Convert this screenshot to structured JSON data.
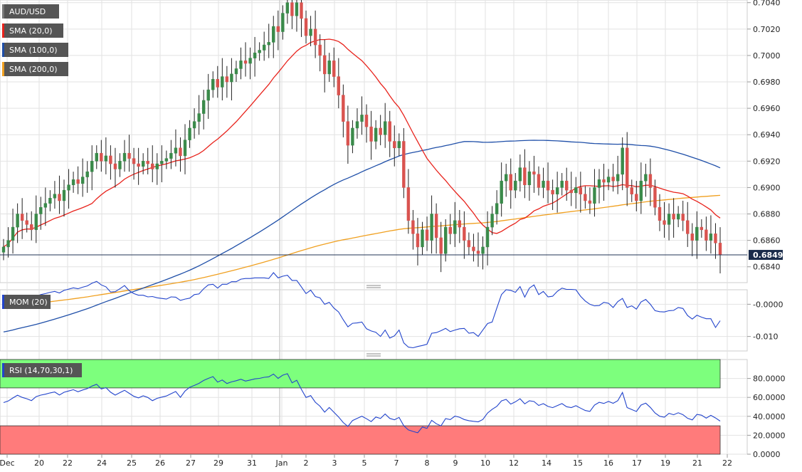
{
  "colors": {
    "up": "#3a8a4a",
    "down": "#d9534f",
    "sma20": "#e8221b",
    "sma100": "#1f4fa8",
    "sma200": "#f0a020",
    "mom": "#2244cc",
    "rsi": "#2244cc",
    "rsi_over": "#7dff7d",
    "rsi_under": "#ff7b7b",
    "badge_bg": "#555555",
    "grid": "#e2e2e2"
  },
  "legend": {
    "symbol": "AUD/USD",
    "sma20": "SMA (20,0)",
    "sma100": "SMA (100,0)",
    "sma200": "SMA (200,0)",
    "mom": "MOM (20)",
    "rsi": "RSI (14,70,30,1)"
  },
  "price_label": "0.6849",
  "x_ticks": [
    "Dec",
    "20",
    "22",
    "24",
    "25",
    "26",
    "27",
    "29",
    "31",
    "Jan",
    "2",
    "3",
    "5",
    "7",
    "8",
    "9",
    "10",
    "12",
    "14",
    "15",
    "16",
    "17",
    "19",
    "21",
    "22"
  ],
  "chart_data": [
    {
      "type": "candlestick",
      "pane": "price",
      "ylim": [
        0.6828,
        0.7042
      ],
      "y_ticks": [
        "0.7040",
        "0.7020",
        "0.7000",
        "0.6980",
        "0.6960",
        "0.6940",
        "0.6920",
        "0.6900",
        "0.6880",
        "0.6860",
        "0.6840"
      ],
      "last_price": 0.6849,
      "closes": [
        0.6855,
        0.686,
        0.687,
        0.688,
        0.6875,
        0.6872,
        0.6868,
        0.688,
        0.6885,
        0.6888,
        0.6892,
        0.6895,
        0.689,
        0.6898,
        0.6902,
        0.6906,
        0.6903,
        0.6908,
        0.6912,
        0.692,
        0.6926,
        0.692,
        0.6924,
        0.6918,
        0.6914,
        0.692,
        0.6926,
        0.6922,
        0.6918,
        0.6916,
        0.692,
        0.6918,
        0.6914,
        0.6918,
        0.692,
        0.6922,
        0.6926,
        0.693,
        0.6924,
        0.6936,
        0.6945,
        0.695,
        0.6956,
        0.6966,
        0.6974,
        0.6982,
        0.6976,
        0.6984,
        0.698,
        0.6986,
        0.699,
        0.6996,
        0.6994,
        0.6998,
        0.7002,
        0.7004,
        0.7008,
        0.701,
        0.7022,
        0.7018,
        0.7032,
        0.704,
        0.703,
        0.704,
        0.7028,
        0.7015,
        0.702,
        0.7008,
        0.7,
        0.6986,
        0.6996,
        0.6984,
        0.697,
        0.695,
        0.6932,
        0.6945,
        0.695,
        0.6955,
        0.6946,
        0.6935,
        0.6945,
        0.694,
        0.695,
        0.6935,
        0.693,
        0.6935,
        0.69,
        0.6875,
        0.6865,
        0.6855,
        0.6868,
        0.686,
        0.688,
        0.6862,
        0.685,
        0.687,
        0.6865,
        0.6875,
        0.687,
        0.686,
        0.6855,
        0.6852,
        0.685,
        0.6855,
        0.687,
        0.688,
        0.6888,
        0.6905,
        0.691,
        0.6898,
        0.6905,
        0.6915,
        0.6902,
        0.6912,
        0.691,
        0.69,
        0.6905,
        0.6898,
        0.6895,
        0.69,
        0.6905,
        0.6898,
        0.6896,
        0.69,
        0.6895,
        0.689,
        0.6888,
        0.69,
        0.6906,
        0.6904,
        0.6908,
        0.6905,
        0.691,
        0.693,
        0.69,
        0.6895,
        0.689,
        0.6905,
        0.691,
        0.69,
        0.6885,
        0.6875,
        0.6872,
        0.688,
        0.6876,
        0.688,
        0.6875,
        0.6865,
        0.686,
        0.687,
        0.6868,
        0.686,
        0.6865,
        0.6858,
        0.6849
      ]
    },
    {
      "type": "line",
      "pane": "mom",
      "name": "MOM (20)",
      "ylim": [
        -0.0145,
        0.0045
      ],
      "y_ticks": [
        "-0.0000",
        "-0.010"
      ]
    },
    {
      "type": "line",
      "pane": "rsi",
      "name": "RSI (14,70,30,1)",
      "ylim": [
        0,
        100
      ],
      "y_ticks": [
        "80.0000",
        "60.0000",
        "40.0000",
        "20.0000",
        "0.0000"
      ],
      "levels": [
        70,
        30
      ]
    }
  ]
}
